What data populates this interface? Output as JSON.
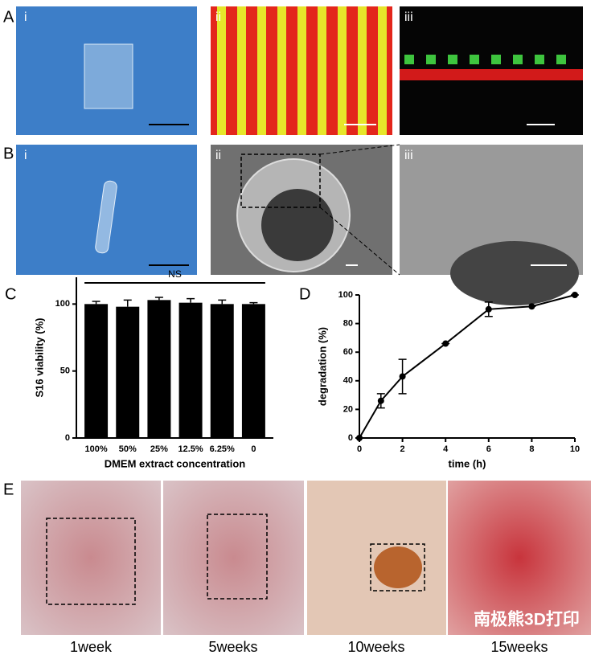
{
  "panel_labels": [
    "A",
    "B",
    "C",
    "D",
    "E"
  ],
  "subpanel_labels": [
    "i",
    "ii",
    "iii",
    "i",
    "ii",
    "iii"
  ],
  "week_labels": [
    "1week",
    "5weeks",
    "10weeks",
    "15weeks"
  ],
  "watermark": "南极熊3D打印",
  "chart_data": [
    {
      "type": "bar",
      "categories": [
        "100%",
        "50%",
        "25%",
        "12.5%",
        "6.25%",
        "0"
      ],
      "values": [
        100,
        98,
        103,
        101,
        100,
        100
      ],
      "errors": [
        2,
        5,
        2,
        3,
        3,
        1
      ],
      "color": "#000000",
      "ylim": [
        0,
        120
      ],
      "yticks": [
        0,
        50,
        100
      ],
      "y_label": "S16 viability (%)",
      "x_label": "DMEM extract concentration",
      "annotation": "NS"
    },
    {
      "type": "line",
      "x": [
        0,
        1,
        2,
        4,
        6,
        8,
        10
      ],
      "values": [
        0,
        26,
        43,
        66,
        90,
        92,
        100
      ],
      "errors": [
        0,
        5,
        12,
        0,
        5,
        0,
        0
      ],
      "color": "#000000",
      "xlim": [
        0,
        10
      ],
      "xticks": [
        0,
        2,
        4,
        6,
        8,
        10
      ],
      "ylim": [
        0,
        100
      ],
      "yticks": [
        0,
        20,
        40,
        60,
        80,
        100
      ],
      "x_label": "time (h)",
      "y_label": "degradation (%)"
    }
  ]
}
